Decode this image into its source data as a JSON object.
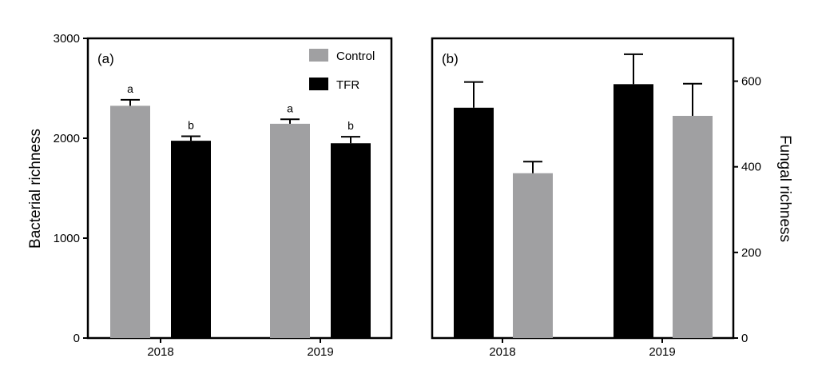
{
  "colors": {
    "control": "#a0a0a2",
    "tfr": "#000000",
    "axis": "#000000"
  },
  "chart_data": [
    {
      "type": "bar",
      "panel_label": "(a)",
      "ylabel": "Bacterial richness",
      "ylim": [
        0,
        3000
      ],
      "yticks": [
        "0",
        "1000",
        "2000",
        "3000"
      ],
      "categories": [
        "2018",
        "2019"
      ],
      "legend": {
        "placement": "top-right"
      },
      "series": [
        {
          "name": "Control",
          "color": "#a0a0a2",
          "values": [
            2325,
            2145
          ],
          "errors": [
            60,
            45
          ],
          "labels": [
            "a",
            "a"
          ]
        },
        {
          "name": "TFR",
          "color": "#000000",
          "values": [
            1975,
            1950
          ],
          "errors": [
            45,
            65
          ],
          "labels": [
            "b",
            "b"
          ]
        }
      ]
    },
    {
      "type": "bar",
      "panel_label": "(b)",
      "ylabel": "Fungal richness",
      "ylabel_side": "right",
      "ylim": [
        0,
        700
      ],
      "yticks": [
        "0",
        "200",
        "400",
        "600"
      ],
      "categories": [
        "2018",
        "2019"
      ],
      "bars": [
        {
          "category": "2018",
          "color": "#000000",
          "value": 538,
          "error": 60
        },
        {
          "category": "2018",
          "color": "#a0a0a2",
          "value": 385,
          "error": 27
        },
        {
          "category": "2019",
          "color": "#000000",
          "value": 593,
          "error": 70
        },
        {
          "category": "2019",
          "color": "#a0a0a2",
          "value": 519,
          "error": 75
        }
      ]
    }
  ]
}
